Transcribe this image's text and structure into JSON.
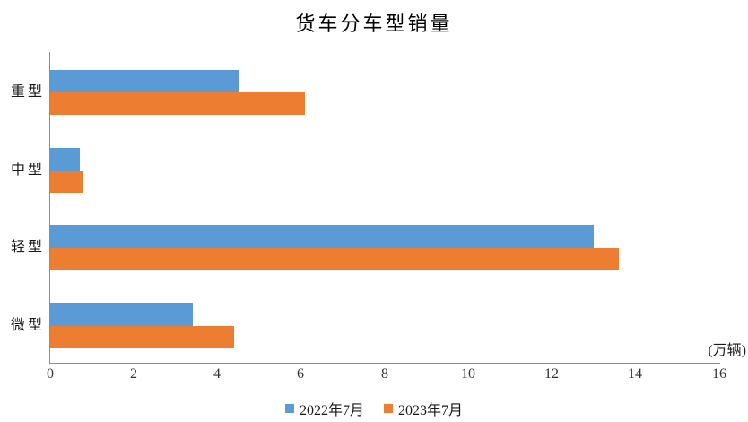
{
  "title": "货车分车型销量",
  "unit_label": "(万辆)",
  "colors": {
    "series_2022": "#5B9BD5",
    "series_2023": "#ED7D31",
    "axis_line": "#8C8C8C",
    "background": "#FFFFFF",
    "text": "#1A1A1A"
  },
  "legend": {
    "position": "bottom",
    "items": [
      {
        "label": "2022年7月",
        "color": "#5B9BD5"
      },
      {
        "label": "2023年7月",
        "color": "#ED7D31"
      }
    ]
  },
  "chart_data": {
    "type": "bar",
    "orientation": "horizontal",
    "title": "货车分车型销量",
    "categories": [
      "重型",
      "中型",
      "轻型",
      "微型"
    ],
    "series": [
      {
        "name": "2022年7月",
        "color": "#5B9BD5",
        "values": [
          4.5,
          0.7,
          13.0,
          3.4
        ]
      },
      {
        "name": "2023年7月",
        "color": "#ED7D31",
        "values": [
          6.1,
          0.8,
          13.6,
          4.4
        ]
      }
    ],
    "xlabel": "",
    "ylabel": "",
    "unit": "(万辆)",
    "xlim": [
      0,
      16
    ],
    "x_ticks": [
      0,
      2,
      4,
      6,
      8,
      10,
      12,
      14,
      16
    ],
    "grid": false,
    "legend_position": "bottom",
    "category_order": "top-to-bottom"
  }
}
